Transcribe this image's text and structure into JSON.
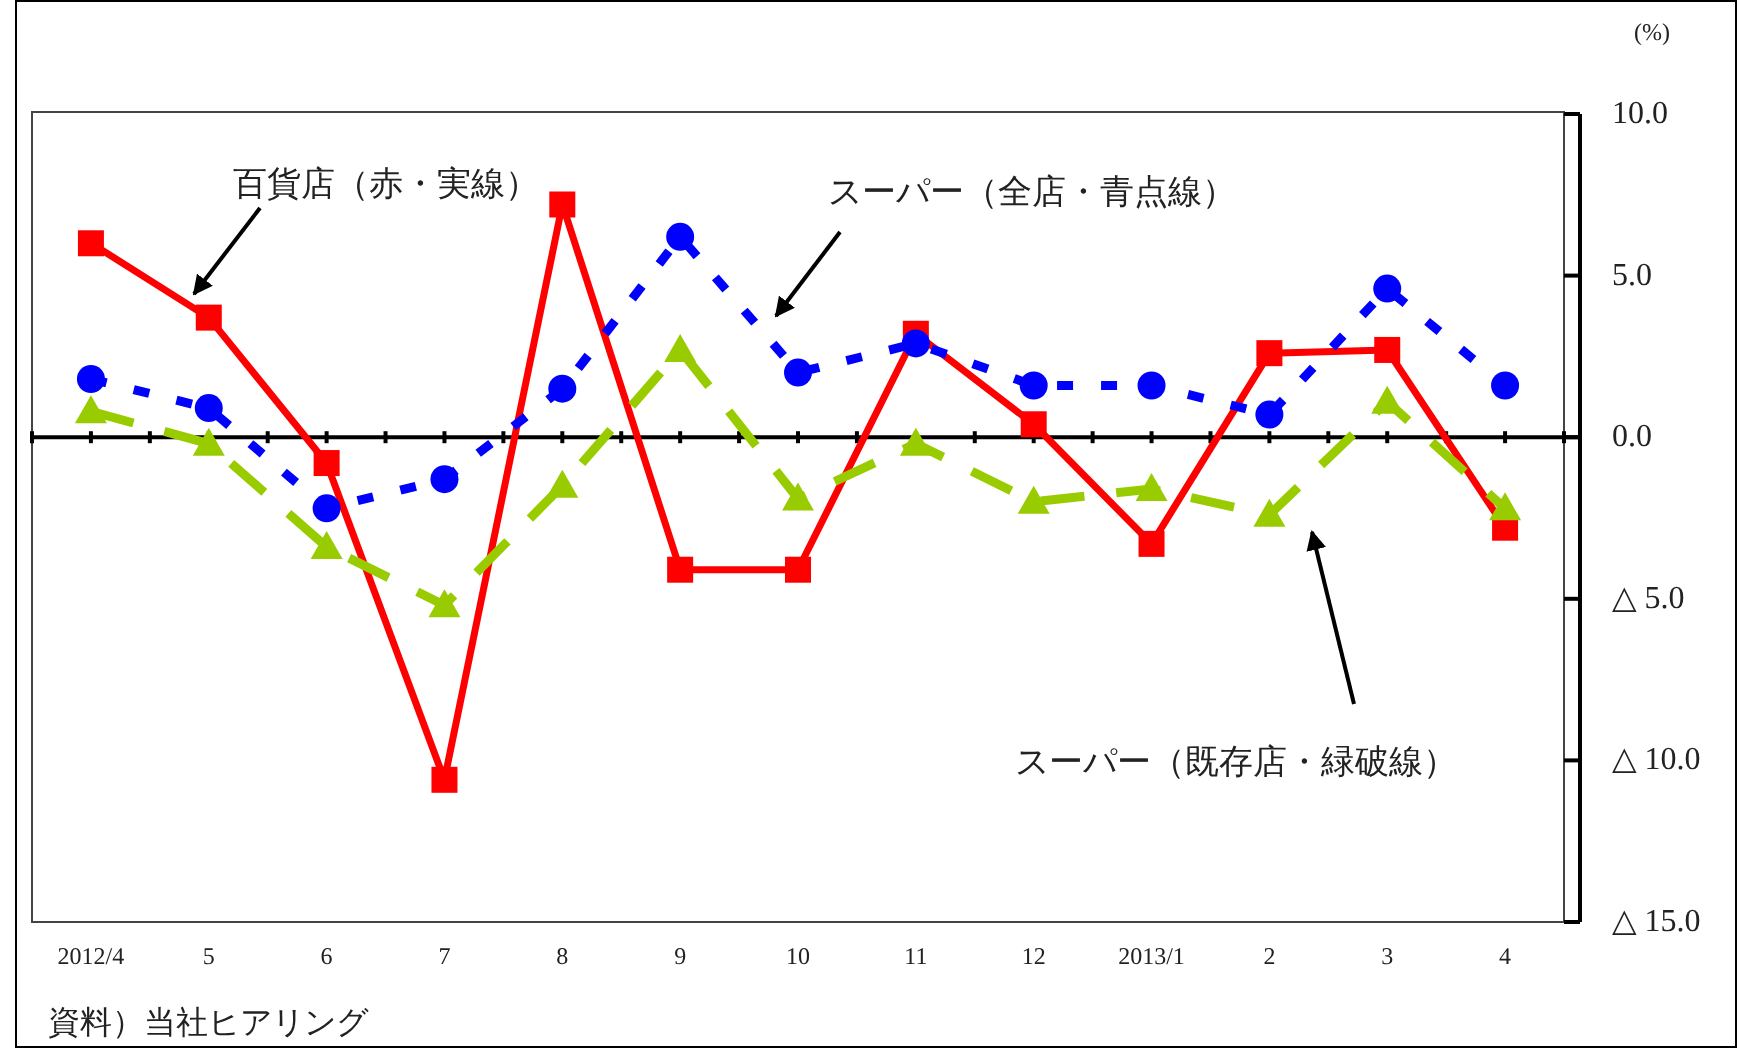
{
  "chart_data": {
    "type": "line",
    "ylabel": "(%)",
    "categories": [
      "2012/4",
      "5",
      "6",
      "7",
      "8",
      "9",
      "10",
      "11",
      "12",
      "2013/1",
      "2",
      "3",
      "4"
    ],
    "ylim": [
      -15,
      10
    ],
    "yticks": [
      {
        "value": 10,
        "label": "10.0"
      },
      {
        "value": 5,
        "label": "5.0"
      },
      {
        "value": 0,
        "label": "0.0"
      },
      {
        "value": -5,
        "label": "△ 5.0"
      },
      {
        "value": -10,
        "label": "△ 10.0"
      },
      {
        "value": -15,
        "label": "△ 15.0"
      }
    ],
    "series": [
      {
        "name": "百貨店（赤・実線）",
        "color": "#ff0000",
        "marker": "square",
        "line_style": "solid",
        "values": [
          6.0,
          3.7,
          -0.8,
          -10.6,
          7.2,
          -4.1,
          -4.1,
          3.2,
          0.4,
          -3.3,
          2.6,
          2.7,
          -2.8
        ]
      },
      {
        "name": "スーパー（全店・青点線）",
        "color": "#0000ff",
        "marker": "circle",
        "line_style": "dotted",
        "values": [
          1.8,
          0.9,
          -2.2,
          -1.3,
          1.5,
          6.2,
          2.0,
          2.9,
          1.6,
          1.6,
          0.7,
          4.6,
          1.6
        ]
      },
      {
        "name": "スーパー（既存店・緑破線）",
        "color": "#99cc00",
        "marker": "triangle",
        "line_style": "dashed",
        "values": [
          0.8,
          -0.2,
          -3.4,
          -5.2,
          -1.5,
          2.7,
          -1.9,
          -0.2,
          -2.0,
          -1.6,
          -2.4,
          1.1,
          -2.2
        ]
      }
    ],
    "annotations": [
      "資料）当社ヒアリング"
    ],
    "legend": false
  }
}
